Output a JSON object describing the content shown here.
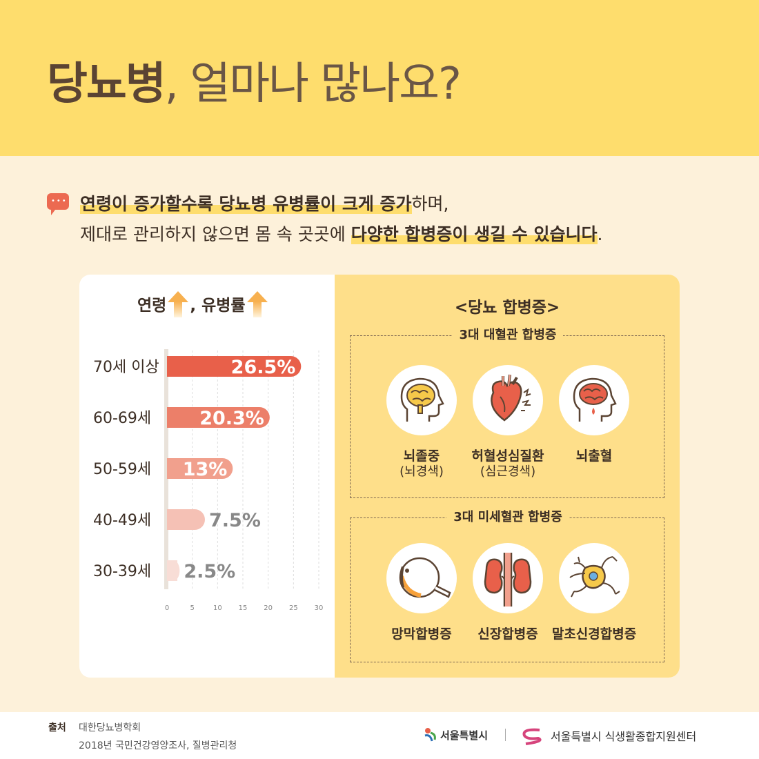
{
  "header": {
    "title_bold": "당뇨병",
    "title_light": ", 얼마나 많나요?"
  },
  "intro": {
    "line1_hl": "연령이 증가할수록 당뇨병 유병률이 크게 증가",
    "line1_rest": "하며,",
    "line2_start": "제대로 관리하지 않으면 몸 속 곳곳에 ",
    "line2_hl": "다양한 합병증이 생길 수 있습니다",
    "line2_end": "."
  },
  "chart": {
    "title_part1": "연령",
    "title_part2": ", 유병률"
  },
  "chart_data": {
    "type": "bar",
    "orientation": "horizontal",
    "categories": [
      "70세 이상",
      "60-69세",
      "50-59세",
      "40-49세",
      "30-39세"
    ],
    "values": [
      26.5,
      20.3,
      13,
      7.5,
      2.5
    ],
    "value_labels": [
      "26.5%",
      "20.3%",
      "13%",
      "7.5%",
      "2.5%"
    ],
    "bar_colors": [
      "#e8604a",
      "#ec7f69",
      "#f1a08d",
      "#f5c1b5",
      "#f8ddd6"
    ],
    "xlim": [
      0,
      30
    ],
    "xticks": [
      0,
      5,
      10,
      15,
      20,
      25,
      30
    ],
    "grid": true
  },
  "complications": {
    "title": "<당뇨 합병증>",
    "macro": {
      "title": "3대 대혈관 합병증",
      "items": [
        {
          "label": "뇌졸중",
          "sub": "(뇌경색)",
          "icon": "brain-icon"
        },
        {
          "label": "허혈성심질환",
          "sub": "(심근경색)",
          "icon": "heart-icon"
        },
        {
          "label": "뇌출혈",
          "sub": "",
          "icon": "brain-bleed-icon"
        }
      ]
    },
    "micro": {
      "title": "3대 미세혈관 합병증",
      "items": [
        {
          "label": "망막합병증",
          "icon": "eye-icon"
        },
        {
          "label": "신장합병증",
          "icon": "kidney-icon"
        },
        {
          "label": "말초신경합병증",
          "icon": "nerve-icon"
        }
      ]
    }
  },
  "footer": {
    "source_label": "출처",
    "source1": "대한당뇨병학회",
    "source2": "2018년 국민건강영양조사, 질병관리청",
    "logo1": "서울특별시",
    "logo2": "서울특별시 식생활종합지원센터"
  }
}
